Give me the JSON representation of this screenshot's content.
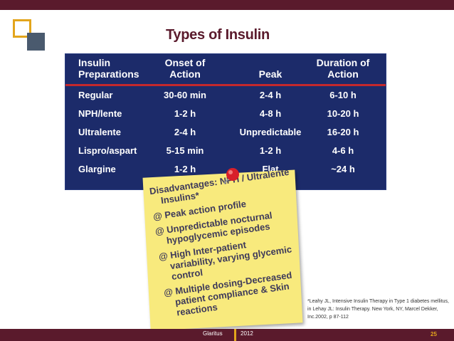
{
  "slide": {
    "title": "Types of Insulin",
    "table": {
      "headers": [
        "Insulin\nPreparations",
        "Onset of\nAction",
        "Peak",
        "Duration of\nAction"
      ],
      "rows": [
        [
          "Regular",
          "30-60 min",
          "2-4 h",
          "6-10 h"
        ],
        [
          "NPH/lente",
          "1-2 h",
          "4-8 h",
          "10-20 h"
        ],
        [
          "Ultralente",
          "2-4 h",
          "Unpredictable",
          "16-20 h"
        ],
        [
          "Lispro/aspart",
          "5-15 min",
          "1-2 h",
          "4-6 h"
        ],
        [
          "Glargine",
          "1-2 h",
          "Flat",
          "~24 h"
        ]
      ]
    },
    "note": {
      "lines": [
        "Disadvantages: NPH / Ultralente",
        "  Insulins*",
        "@ Peak action profile",
        "@ Unpredictable nocturnal",
        "  hypoglycemic episodes",
        "@ High Inter-patient",
        "  variability, varying glycemic",
        "  control",
        "@ Multiple dosing-Decreased",
        "  patient compliance & Skin",
        "  reactions"
      ]
    },
    "citation": "*Leahy JL, Intensive Insulin Therapy in Type 1 diabetes mellitus, in Lehay JL: Insulin Therapy. New York, NY, Marcel Dekker, Inc.2002, p 87-112",
    "footer": {
      "left": "Glaritus",
      "right": "2012",
      "page": "25"
    }
  },
  "colors": {
    "brand": "#5a1a2c",
    "accent": "#e3a51c",
    "table_bg": "#1c2b6a",
    "rule": "#c4282c",
    "note": "#f8ea7d"
  }
}
